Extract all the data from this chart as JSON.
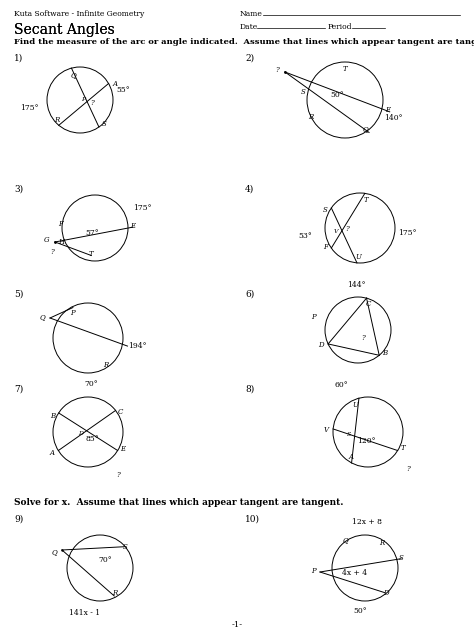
{
  "title": "Secant Angles",
  "header_left": "Kuta Software - Infinite Geometry",
  "instruction1": "Find the measure of the arc or angle indicated.  Assume that lines which appear tangent are tangent.",
  "instruction2": "Solve for x.  Assume that lines which appear tangent are tangent.",
  "page_number": "-1-",
  "bg_color": "#ffffff",
  "problems": [
    {
      "num": "1",
      "col": 0
    },
    {
      "num": "2",
      "col": 1
    },
    {
      "num": "3",
      "col": 0
    },
    {
      "num": "4",
      "col": 1
    },
    {
      "num": "5",
      "col": 0
    },
    {
      "num": "6",
      "col": 1
    },
    {
      "num": "7",
      "col": 0
    },
    {
      "num": "8",
      "col": 1
    },
    {
      "num": "9",
      "col": 0
    },
    {
      "num": "10",
      "col": 1
    }
  ]
}
